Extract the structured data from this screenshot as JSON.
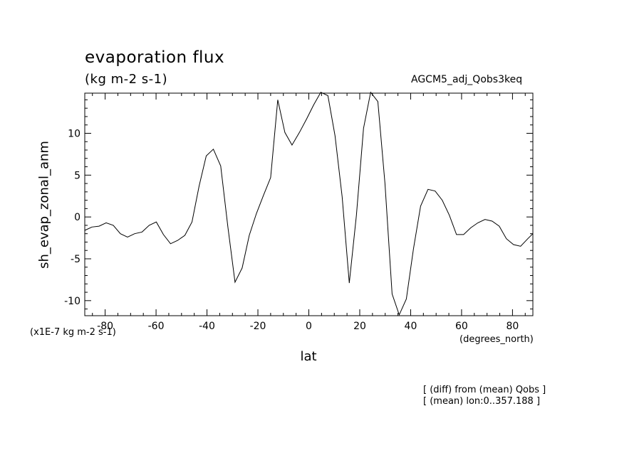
{
  "chart_data": {
    "type": "line",
    "title": "evaporation flux",
    "subtitle": "(kg m-2 s-1)",
    "model_label": "AGCM5_adj_Qobs3keq",
    "ylabel": "sh_evap_zonal_anm",
    "xlabel": "lat",
    "y_scale_note": "(x1E-7 kg m-2 s-1)",
    "x_units": "(degrees_north)",
    "notes": [
      "[ (diff) from (mean) Qobs ]",
      "[ (mean) lon:0..357.188 ]"
    ],
    "xlim": [
      -88,
      88
    ],
    "ylim": [
      -11.8,
      14.8
    ],
    "x_ticks": [
      -80,
      -60,
      -40,
      -20,
      0,
      20,
      40,
      60,
      80
    ],
    "y_ticks": [
      -10,
      -5,
      0,
      5,
      10
    ],
    "grid": false,
    "series": [
      {
        "x": [
          -88.0,
          -85.2,
          -82.4,
          -79.6,
          -76.8,
          -74.0,
          -71.2,
          -68.4,
          -65.5,
          -62.7,
          -59.9,
          -57.1,
          -54.3,
          -51.5,
          -48.7,
          -45.9,
          -43.1,
          -40.3,
          -37.5,
          -34.6,
          -31.8,
          -29.0,
          -26.2,
          -23.4,
          -20.6,
          -17.8,
          -15.0,
          -12.2,
          -9.4,
          -6.6,
          -3.7,
          -0.9,
          1.9,
          4.7,
          7.5,
          10.3,
          13.1,
          15.9,
          18.7,
          21.5,
          24.3,
          27.1,
          29.9,
          32.7,
          35.5,
          38.3,
          41.1,
          43.9,
          46.8,
          49.6,
          52.4,
          55.2,
          58.0,
          60.8,
          63.6,
          66.4,
          69.2,
          72.0,
          74.8,
          77.6,
          80.4,
          83.2,
          86.0,
          88.0
        ],
        "y": [
          -1.6,
          -1.2,
          -1.1,
          -0.7,
          -1.0,
          -2.0,
          -2.4,
          -2.0,
          -1.8,
          -1.0,
          -0.6,
          -2.1,
          -3.2,
          -2.8,
          -2.2,
          -0.6,
          3.7,
          7.3,
          8.1,
          6.1,
          -1.2,
          -7.8,
          -6.1,
          -2.2,
          0.4,
          2.6,
          4.7,
          14.0,
          10.1,
          8.6,
          10.1,
          11.7,
          13.4,
          14.9,
          14.5,
          9.7,
          2.4,
          -7.9,
          0.2,
          10.6,
          14.9,
          13.8,
          4.0,
          -9.2,
          -11.7,
          -9.8,
          -3.8,
          1.3,
          3.3,
          3.1,
          2.0,
          0.2,
          -2.1,
          -2.1,
          -1.3,
          -0.7,
          -0.3,
          -0.5,
          -1.1,
          -2.6,
          -3.3,
          -3.5,
          -2.6,
          -2.0
        ]
      }
    ]
  }
}
